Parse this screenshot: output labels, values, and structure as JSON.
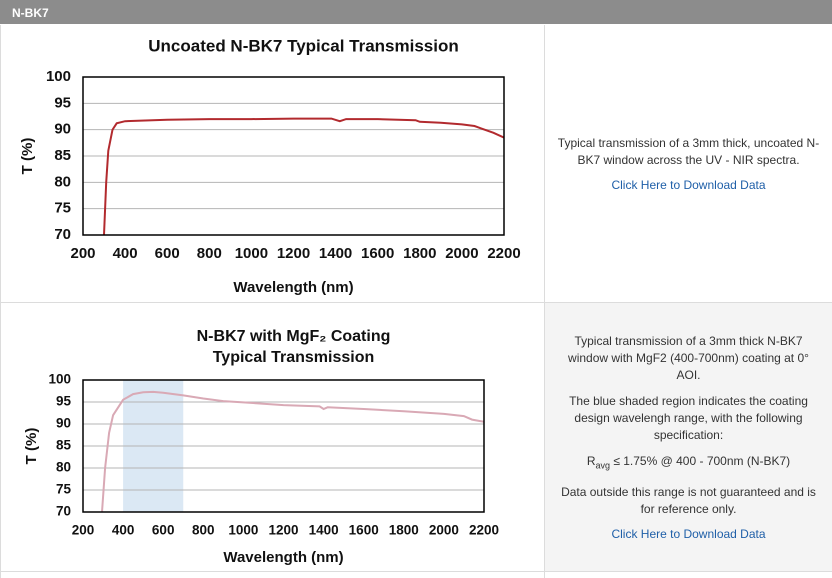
{
  "header": "N-BK7",
  "chart_data": [
    {
      "type": "line",
      "title": [
        "Uncoated N-BK7 Typical Transmission"
      ],
      "xlabel": "Wavelength (nm)",
      "ylabel": "T (%)",
      "x": [
        300,
        310,
        320,
        340,
        360,
        400,
        600,
        800,
        1000,
        1200,
        1380,
        1420,
        1450,
        1600,
        1780,
        1800,
        1900,
        2000,
        2060,
        2100,
        2150,
        2200
      ],
      "values": [
        70,
        80,
        86,
        90,
        91.2,
        91.6,
        91.9,
        92,
        92,
        92.1,
        92.1,
        91.6,
        92,
        92,
        91.8,
        91.5,
        91.3,
        91,
        90.7,
        90.1,
        89.4,
        88.5
      ],
      "color": "#b22a2e",
      "xlim": [
        200,
        2200
      ],
      "ylim": [
        70,
        100
      ],
      "xticks": [
        200,
        400,
        600,
        800,
        1000,
        1200,
        1400,
        1600,
        1800,
        2000,
        2200
      ],
      "yticks": [
        70,
        75,
        80,
        85,
        90,
        95,
        100
      ],
      "grid": true
    },
    {
      "type": "line",
      "title": [
        "N-BK7 with MgF₂ Coating",
        "Typical Transmission"
      ],
      "xlabel": "Wavelength (nm)",
      "ylabel": "T (%)",
      "x": [
        295,
        310,
        330,
        350,
        400,
        450,
        500,
        550,
        600,
        700,
        800,
        900,
        1000,
        1200,
        1380,
        1400,
        1420,
        1600,
        1800,
        2000,
        2100,
        2140,
        2200
      ],
      "values": [
        70,
        80,
        88,
        92,
        95.5,
        96.8,
        97.2,
        97.3,
        97.1,
        96.5,
        95.8,
        95.2,
        94.9,
        94.3,
        94,
        93.4,
        93.8,
        93.4,
        92.9,
        92.3,
        91.8,
        91,
        90.5
      ],
      "color": "#d9a9b5",
      "shade": [
        400,
        700
      ],
      "shade_color": "#dbe8f4",
      "xlim": [
        200,
        2200
      ],
      "ylim": [
        70,
        100
      ],
      "xticks": [
        200,
        400,
        600,
        800,
        1000,
        1200,
        1400,
        1600,
        1800,
        2000,
        2200
      ],
      "yticks": [
        70,
        75,
        80,
        85,
        90,
        95,
        100
      ],
      "grid": true
    }
  ],
  "descriptions": [
    {
      "text": "Typical transmission of a 3mm thick, uncoated N-BK7 window across the UV - NIR spectra.",
      "link": "Click Here to Download Data"
    },
    {
      "paragraphs": [
        "Typical transmission of a 3mm thick N-BK7 window with MgF2 (400-700nm) coating at 0° AOI.",
        "The blue shaded region indicates the coating design wavelengh range, with the following specification:",
        "Data outside this range is not guaranteed and is for reference only."
      ],
      "spec": {
        "symbol": "R",
        "subscript": "avg",
        "text": " ≤ 1.75% @ 400 - 700nm (N-BK7)"
      },
      "link": "Click Here to Download Data"
    }
  ]
}
